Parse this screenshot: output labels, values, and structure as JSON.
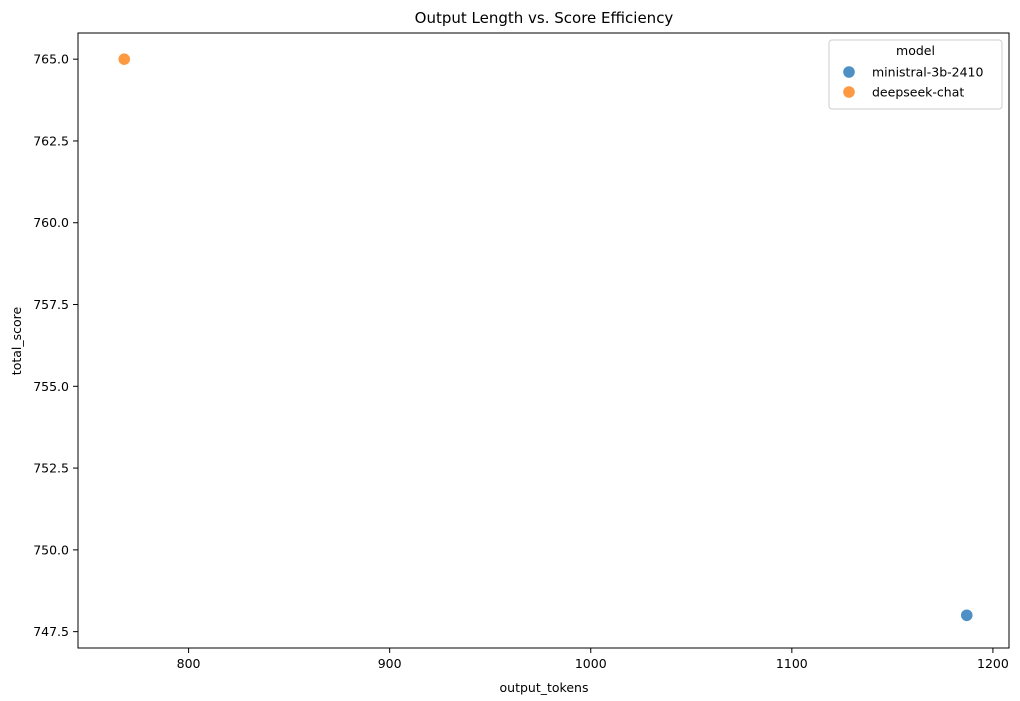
{
  "chart_data": {
    "type": "scatter",
    "title": "Output Length vs. Score Efficiency",
    "xlabel": "output_tokens",
    "ylabel": "total_score",
    "xlim": [
      745,
      1208
    ],
    "ylim": [
      747.0,
      765.8
    ],
    "xticks": [
      800,
      900,
      1000,
      1100,
      1200
    ],
    "xtick_labels": [
      "800",
      "900",
      "1000",
      "1100",
      "1200"
    ],
    "yticks": [
      747.5,
      750.0,
      752.5,
      755.0,
      757.5,
      760.0,
      762.5,
      765.0
    ],
    "ytick_labels": [
      "747.5",
      "750.0",
      "752.5",
      "755.0",
      "757.5",
      "760.0",
      "762.5",
      "765.0"
    ],
    "grid": false,
    "legend": {
      "title": "model",
      "placement": "top-right"
    },
    "series": [
      {
        "name": "ministral-3b-2410",
        "color": "#3b84bf",
        "points": [
          {
            "x": 1187,
            "y": 748.0
          }
        ]
      },
      {
        "name": "deepseek-chat",
        "color": "#fd8f2c",
        "points": [
          {
            "x": 768,
            "y": 765.0
          }
        ]
      }
    ]
  }
}
